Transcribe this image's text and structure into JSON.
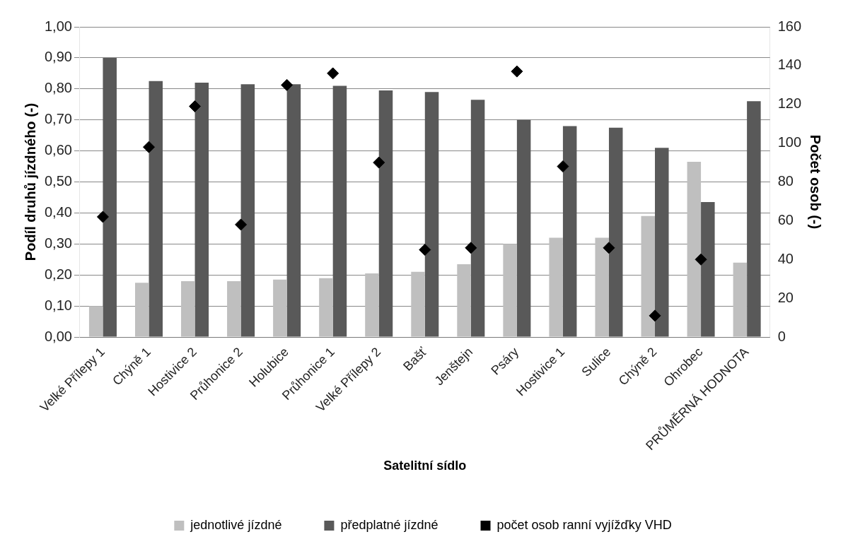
{
  "chart_data": {
    "type": "bar",
    "xlabel": "Satelitní sídlo",
    "ylabel": "Podíl druhů jízdného (-)",
    "y2label": "Počet osob (-)",
    "categories": [
      "Velké Přílepy 1",
      "Chýně 1",
      "Hostivice 2",
      "Průhonice 2",
      "Holubice",
      "Průhonice 1",
      "Velké Přílepy 2",
      "Bašť",
      "Jenštejn",
      "Psáry",
      "Hostivice 1",
      "Sulice",
      "Chýně 2",
      "Ohrobec",
      "PRŮMĚRNÁ HODNOTA"
    ],
    "series": [
      {
        "name": "jednotlivé jízdné",
        "color": "#bfbfbf",
        "values": [
          0.1,
          0.175,
          0.18,
          0.18,
          0.185,
          0.19,
          0.205,
          0.21,
          0.235,
          0.3,
          0.32,
          0.32,
          0.39,
          0.565,
          0.24
        ]
      },
      {
        "name": "předplatné jízdné",
        "color": "#595959",
        "values": [
          0.9,
          0.825,
          0.82,
          0.815,
          0.815,
          0.81,
          0.795,
          0.79,
          0.765,
          0.7,
          0.68,
          0.675,
          0.61,
          0.435,
          0.76
        ]
      },
      {
        "name": "počet osob ranní vyjížďky VHD",
        "type": "scatter",
        "axis": "y2",
        "marker": "diamond",
        "color": "#000000",
        "values": [
          62,
          98,
          119,
          58,
          130,
          136,
          90,
          45,
          46,
          137,
          88,
          46,
          11,
          40,
          null
        ]
      }
    ],
    "ylim": [
      0,
      1
    ],
    "yticks": [
      {
        "value": 0,
        "label": "0,00"
      },
      {
        "value": 0.1,
        "label": "0,10"
      },
      {
        "value": 0.2,
        "label": "0,20"
      },
      {
        "value": 0.3,
        "label": "0,30"
      },
      {
        "value": 0.4,
        "label": "0,40"
      },
      {
        "value": 0.5,
        "label": "0,50"
      },
      {
        "value": 0.6,
        "label": "0,60"
      },
      {
        "value": 0.7,
        "label": "0,70"
      },
      {
        "value": 0.8,
        "label": "0,80"
      },
      {
        "value": 0.9,
        "label": "0,90"
      },
      {
        "value": 1,
        "label": "1,00"
      }
    ],
    "y2lim": [
      0,
      160
    ],
    "y2ticks": [
      0,
      20,
      40,
      60,
      80,
      100,
      120,
      140,
      160
    ],
    "grid": "y",
    "legend": "bottom"
  }
}
